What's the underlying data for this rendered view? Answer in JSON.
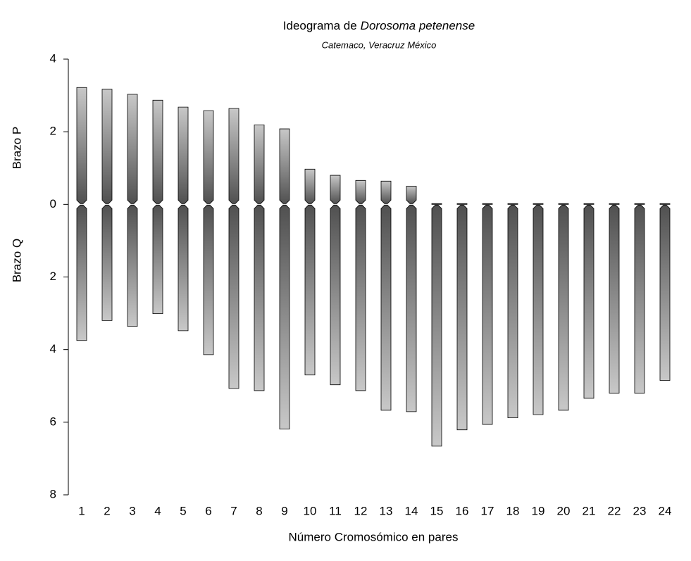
{
  "chart_data": {
    "type": "bar",
    "title": [
      "Ideograma de",
      "Dorosoma petenense"
    ],
    "subtitle": "Catemaco, Veracruz México",
    "xlabel": "Número Cromosómico en pares",
    "categories": [
      "1",
      "2",
      "3",
      "4",
      "5",
      "6",
      "7",
      "8",
      "9",
      "10",
      "11",
      "12",
      "13",
      "14",
      "15",
      "16",
      "17",
      "18",
      "19",
      "20",
      "21",
      "22",
      "23",
      "24"
    ],
    "series": [
      {
        "name": "Brazo P",
        "color": "#505050",
        "values": [
          3.22,
          3.17,
          3.03,
          2.87,
          2.68,
          2.58,
          2.64,
          2.19,
          2.08,
          0.97,
          0.8,
          0.66,
          0.64,
          0.5,
          0,
          0,
          0,
          0,
          0,
          0,
          0,
          0,
          0,
          0
        ]
      },
      {
        "name": "Brazo Q",
        "color": "#505050",
        "values": [
          -3.75,
          -3.2,
          -3.36,
          -3.01,
          -3.48,
          -4.14,
          -5.07,
          -5.13,
          -6.19,
          -4.7,
          -4.97,
          -5.13,
          -5.67,
          -5.71,
          -6.66,
          -6.21,
          -6.06,
          -5.88,
          -5.79,
          -5.67,
          -5.34,
          -5.2,
          -5.2,
          -4.85
        ]
      }
    ],
    "ylim": [
      -8,
      4
    ],
    "yticks": [
      4,
      2,
      0,
      {
        "value": -2,
        "label": "2"
      },
      {
        "value": -4,
        "label": "4"
      },
      {
        "value": -6,
        "label": "6"
      },
      {
        "value": -8,
        "label": "8"
      }
    ]
  }
}
